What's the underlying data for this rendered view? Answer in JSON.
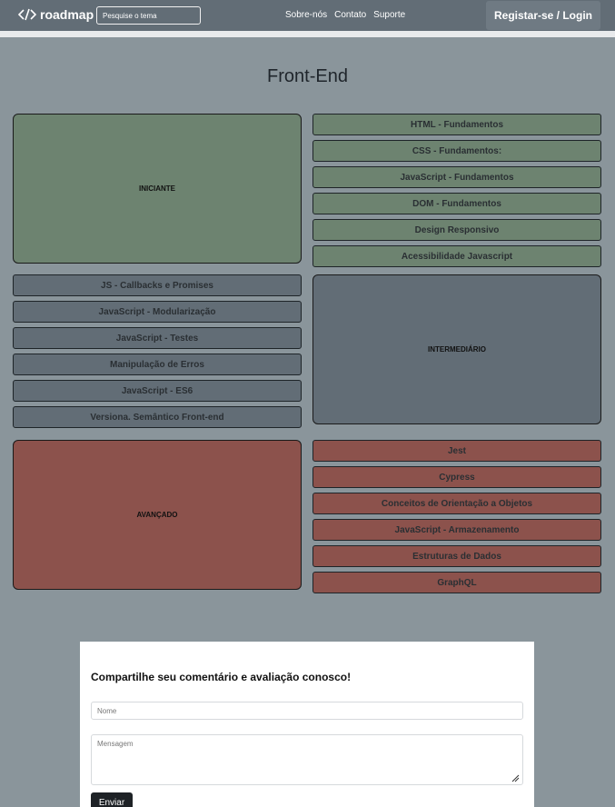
{
  "header": {
    "logo_text": "roadmap",
    "search_placeholder": "Pesquise o tema",
    "nav": [
      "Sobre-nós",
      "Contato",
      "Suporte"
    ],
    "login_label": "Registar-se / Login"
  },
  "page_title": "Front-End",
  "levels": {
    "beginner": {
      "label": "INICIANTE",
      "items": [
        "HTML - Fundamentos",
        "CSS - Fundamentos:",
        "JavaScript - Fundamentos",
        "DOM - Fundamentos",
        "Design Responsivo",
        "Acessibilidade Javascript"
      ]
    },
    "intermediate": {
      "label": "INTERMEDIÁRIO",
      "items": [
        "JS - Callbacks e Promises",
        "JavaScript - Modularização",
        "JavaScript - Testes",
        "Manipulação de Erros",
        "JavaScript - ES6",
        "Versiona. Semântico Front-end"
      ]
    },
    "advanced": {
      "label": "AVANÇADO",
      "items": [
        "Jest",
        "Cypress",
        "Conceitos de Orientação a Objetos",
        "JavaScript - Armazenamento",
        "Estruturas de Dados",
        "GraphQL"
      ]
    }
  },
  "form": {
    "title": "Compartilhe seu comentário e avaliação conosco!",
    "name_placeholder": "Nome",
    "message_placeholder": "Mensagem",
    "submit_label": "Enviar"
  },
  "colors": {
    "header": "#626d76",
    "background": "#8a959b",
    "beginner": "#6d8370",
    "intermediate": "#626d76",
    "advanced": "#8c524c"
  }
}
